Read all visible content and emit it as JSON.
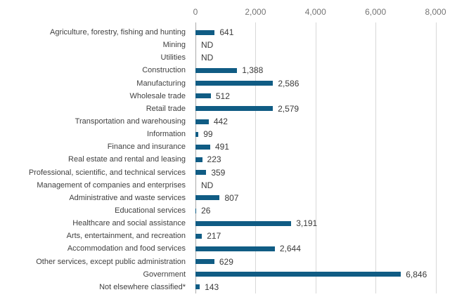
{
  "chart_data": {
    "type": "bar",
    "orientation": "horizontal",
    "title": "",
    "xlabel": "",
    "ylabel": "",
    "xlim": [
      0,
      8000
    ],
    "grid": true,
    "axis_position": "top",
    "x_ticks": [
      {
        "value": 0,
        "label": "0"
      },
      {
        "value": 2000,
        "label": "2,000"
      },
      {
        "value": 4000,
        "label": "4,000"
      },
      {
        "value": 6000,
        "label": "6,000"
      },
      {
        "value": 8000,
        "label": "8,000"
      }
    ],
    "no_data_label": "ND",
    "bars": [
      {
        "category": "Agriculture, forestry, fishing and hunting",
        "value": 641,
        "label": "641"
      },
      {
        "category": "Mining",
        "value": null,
        "label": "ND"
      },
      {
        "category": "Utilities",
        "value": null,
        "label": "ND"
      },
      {
        "category": "Construction",
        "value": 1388,
        "label": "1,388"
      },
      {
        "category": "Manufacturing",
        "value": 2586,
        "label": "2,586"
      },
      {
        "category": "Wholesale trade",
        "value": 512,
        "label": "512"
      },
      {
        "category": "Retail trade",
        "value": 2579,
        "label": "2,579"
      },
      {
        "category": "Transportation and warehousing",
        "value": 442,
        "label": "442"
      },
      {
        "category": "Information",
        "value": 99,
        "label": "99"
      },
      {
        "category": "Finance and insurance",
        "value": 491,
        "label": "491"
      },
      {
        "category": "Real estate and rental and leasing",
        "value": 223,
        "label": "223"
      },
      {
        "category": "Professional, scientific, and technical services",
        "value": 359,
        "label": "359"
      },
      {
        "category": "Management of companies and enterprises",
        "value": null,
        "label": "ND"
      },
      {
        "category": "Administrative and waste services",
        "value": 807,
        "label": "807"
      },
      {
        "category": "Educational services",
        "value": 26,
        "label": "26"
      },
      {
        "category": "Healthcare and social assistance",
        "value": 3191,
        "label": "3,191"
      },
      {
        "category": "Arts, entertainment, and recreation",
        "value": 217,
        "label": "217"
      },
      {
        "category": "Accommodation and food services",
        "value": 2644,
        "label": "2,644"
      },
      {
        "category": "Other services, except public administration",
        "value": 629,
        "label": "629"
      },
      {
        "category": "Government",
        "value": 6846,
        "label": "6,846"
      },
      {
        "category": "Not elsewhere classified*",
        "value": 143,
        "label": "143"
      }
    ],
    "colors": {
      "bar": "#105C84",
      "gridline": "#D8D8D8",
      "zero_line": "#ABABAB",
      "tick_text": "#757575",
      "category_text": "#404040",
      "value_text": "#3A3A3A",
      "background": "#FFFFFF"
    }
  }
}
